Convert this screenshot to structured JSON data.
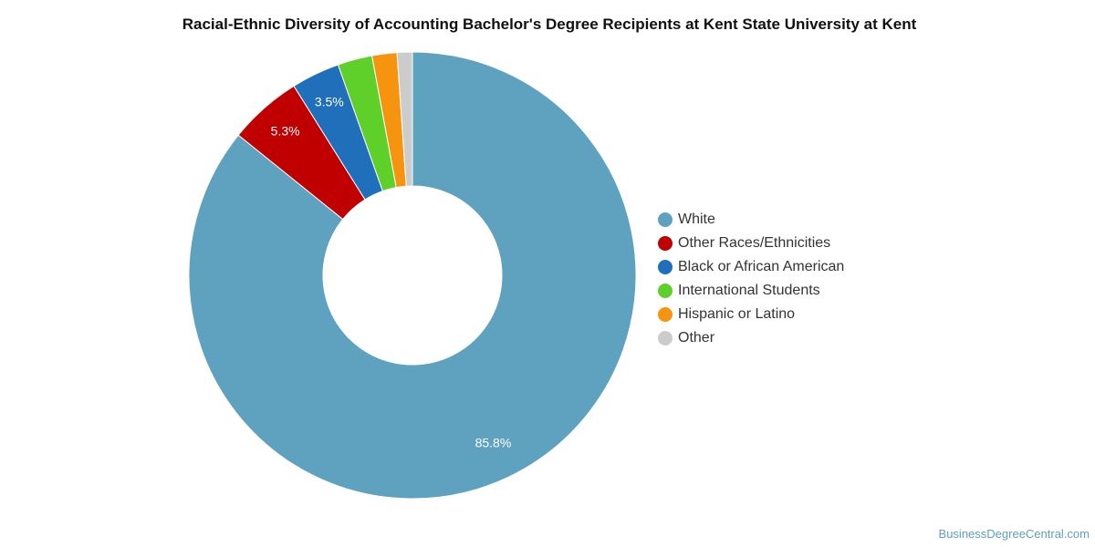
{
  "chart_data": {
    "type": "pie",
    "title": "Racial-Ethnic Diversity of Accounting Bachelor's Degree Recipients at Kent State University at Kent",
    "variant": "donut",
    "labels": [
      "White",
      "Other Races/Ethnicities",
      "Black or African American",
      "International Students",
      "Hispanic or Latino",
      "Other"
    ],
    "values": [
      85.8,
      5.3,
      3.5,
      2.5,
      1.8,
      1.1
    ],
    "data_labels": [
      "85.8%",
      "5.3%",
      "3.5%",
      "",
      "",
      ""
    ],
    "colors": [
      "#5fa2bf",
      "#c00000",
      "#1f6fbb",
      "#5fcf2a",
      "#f7940f",
      "#cccccc"
    ],
    "legend_position": "right"
  },
  "footer": {
    "watermark": "BusinessDegreeCentral.com"
  }
}
